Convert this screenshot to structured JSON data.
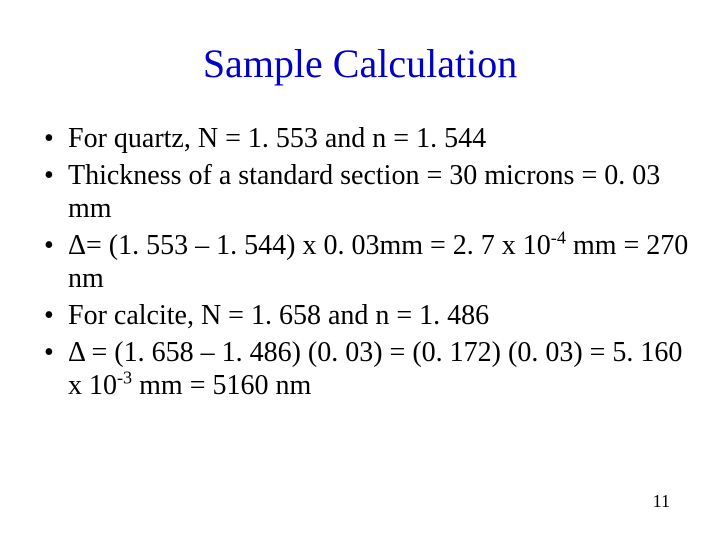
{
  "title": {
    "text": "Sample Calculation",
    "color": "#0000cc"
  },
  "bullets": [
    {
      "pre": "For quartz, N = 1. 553 and n = 1. 544",
      "sup": "",
      "post": ""
    },
    {
      "pre": "Thickness of a standard section = 30 microns = 0. 03 mm",
      "sup": "",
      "post": ""
    },
    {
      "pre": "Δ= (1. 553 – 1. 544) x 0. 03mm = 2. 7 x 10",
      "sup": "-4",
      "post": " mm  = 270 nm"
    },
    {
      "pre": "For calcite,  N = 1. 658  and n = 1. 486",
      "sup": "",
      "post": ""
    },
    {
      "pre": "Δ = (1. 658 – 1. 486) (0. 03) = (0. 172) (0. 03) = 5. 160 x 10",
      "sup": "-3",
      "post": " mm = 5160 nm"
    }
  ],
  "pageNumber": "11",
  "textColor": "#000000"
}
